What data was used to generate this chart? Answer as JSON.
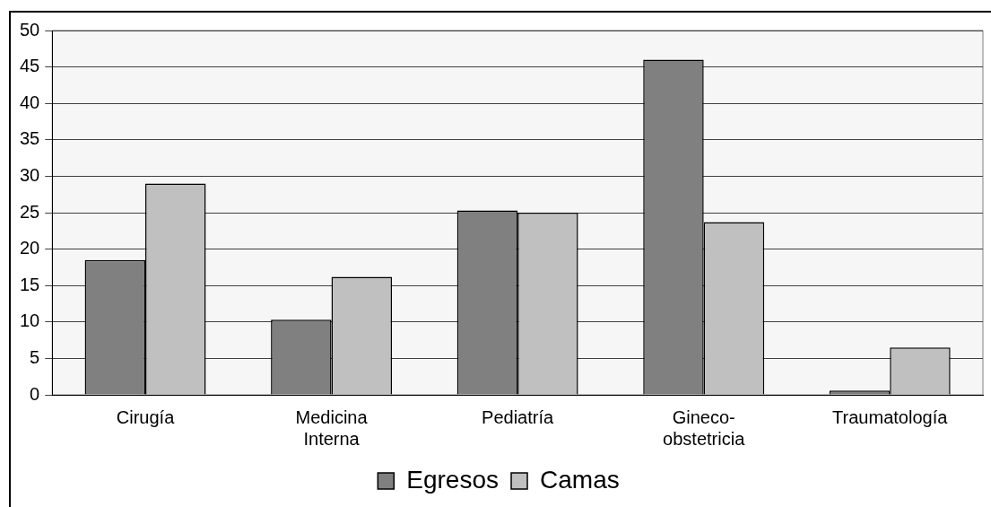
{
  "chart_data": {
    "type": "bar",
    "categories": [
      "Cirugía",
      "Medicina Interna",
      "Pediatría",
      "Gineco-obstetricia",
      "Traumatología"
    ],
    "series": [
      {
        "name": "Egresos",
        "color": "#808080",
        "values": [
          18.5,
          10.3,
          25.3,
          46,
          0.6
        ]
      },
      {
        "name": "Camas",
        "color": "#c0c0c0",
        "values": [
          29,
          16.2,
          25,
          23.7,
          6.5
        ]
      }
    ],
    "ylim": [
      0,
      50
    ],
    "yticks": [
      0,
      5,
      10,
      15,
      20,
      25,
      30,
      35,
      40,
      45,
      50
    ],
    "grid": "y",
    "legend": "bottom"
  }
}
